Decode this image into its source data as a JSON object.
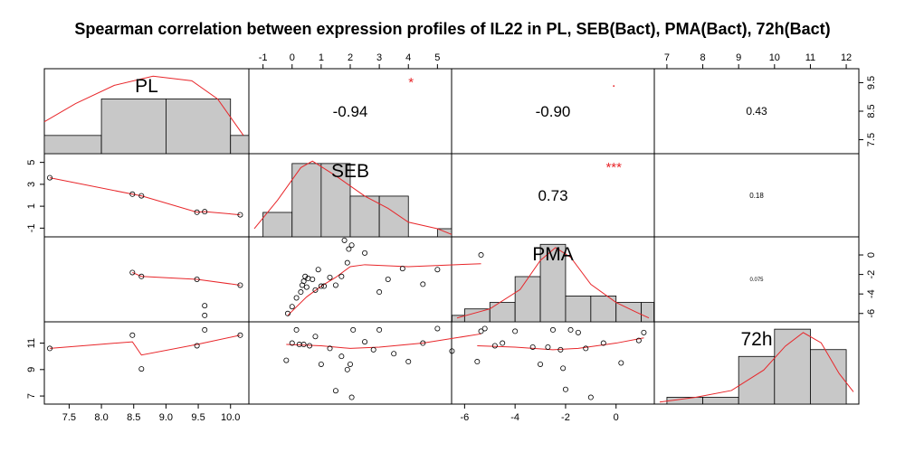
{
  "chart_data": {
    "type": "scatter",
    "title": "Spearman correlation between expression profiles of IL22 in PL, SEB(Bact), PMA(Bact), 72h(Bact)",
    "variables": [
      "PL",
      "SEB",
      "PMA",
      "72h"
    ],
    "colors": {
      "smooth": "#e8262a",
      "hist_fill": "#c8c8c8",
      "axis": "#000000",
      "significance": "#e8262a"
    },
    "axes": {
      "PL": {
        "range": [
          7.2,
          10.2
        ],
        "ticks": [
          "7.5",
          "8.0",
          "8.5",
          "9.0",
          "9.5",
          "10.0"
        ],
        "position": "bottom"
      },
      "SEB": {
        "range": [
          -1.3,
          5.3
        ],
        "ticks": [
          "-1",
          "0",
          "1",
          "2",
          "3",
          "4",
          "5"
        ],
        "left_ticks": [
          "-1",
          "1",
          "3",
          "5"
        ],
        "position": "top and left"
      },
      "PMA": {
        "range": [
          -6.3,
          1.3
        ],
        "ticks": [
          "-6",
          "-4",
          "-2",
          "0"
        ],
        "position": "bottom and right"
      },
      "72h": {
        "range": [
          6.8,
          12.2
        ],
        "ticks": [
          "7",
          "8",
          "9",
          "10",
          "11",
          "12"
        ],
        "left_ticks": [
          "7",
          "9",
          "11"
        ],
        "right_ticks": [
          "7.5",
          "8.5",
          "9.5"
        ],
        "position": "top and left"
      }
    },
    "histograms": {
      "PL": {
        "edges": [
          7.0,
          8.0,
          9.0,
          10.0,
          11.0
        ],
        "counts": [
          0.4,
          1.2,
          1.2,
          0.4
        ]
      },
      "SEB": {
        "edges": [
          -1,
          0,
          1,
          2,
          3,
          4,
          5,
          6
        ],
        "counts": [
          3,
          9,
          9,
          5,
          5,
          0,
          1
        ]
      },
      "PMA": {
        "edges": [
          -6.5,
          -6,
          -5,
          -4,
          -3,
          -2,
          -1,
          0,
          1,
          1.5
        ],
        "counts": [
          1,
          2,
          3,
          7,
          12,
          4,
          4,
          3,
          3
        ]
      },
      "72h": {
        "edges": [
          7,
          8,
          9,
          10,
          11,
          12
        ],
        "counts": [
          1,
          1,
          7,
          11,
          8,
          1
        ]
      }
    },
    "correlations": [
      {
        "pair": [
          "PL",
          "SEB"
        ],
        "value": "-0.94",
        "significance": "*"
      },
      {
        "pair": [
          "PL",
          "PMA"
        ],
        "value": "-0.90",
        "significance": "."
      },
      {
        "pair": [
          "PL",
          "72h"
        ],
        "value": "0.43",
        "significance": ""
      },
      {
        "pair": [
          "SEB",
          "PMA"
        ],
        "value": "0.73",
        "significance": "***"
      },
      {
        "pair": [
          "SEB",
          "72h"
        ],
        "value": "0.18",
        "significance": ""
      },
      {
        "pair": [
          "PMA",
          "72h"
        ],
        "value": "0.075",
        "significance": ""
      }
    ],
    "scatter": {
      "PL_SEB": [
        [
          7.2,
          3.6
        ],
        [
          8.48,
          2.1
        ],
        [
          8.62,
          1.95
        ],
        [
          9.48,
          0.45
        ],
        [
          9.6,
          0.5
        ],
        [
          10.15,
          0.22
        ]
      ],
      "PL_PMA": [
        [
          8.48,
          -1.8
        ],
        [
          8.62,
          -2.2
        ],
        [
          9.48,
          -2.5
        ],
        [
          9.6,
          -5.2
        ],
        [
          9.6,
          -6.2
        ],
        [
          10.15,
          -3.1
        ]
      ],
      "PL_72h": [
        [
          7.2,
          10.6
        ],
        [
          8.48,
          11.6
        ],
        [
          8.62,
          9.05
        ],
        [
          9.48,
          10.8
        ],
        [
          9.6,
          12.0
        ],
        [
          10.15,
          11.6
        ]
      ],
      "SEB_PMA": [
        [
          -0.15,
          -6.0
        ],
        [
          0.0,
          -5.3
        ],
        [
          0.15,
          -4.4
        ],
        [
          0.3,
          -3.8
        ],
        [
          0.35,
          -3.1
        ],
        [
          0.4,
          -2.7
        ],
        [
          0.45,
          -2.2
        ],
        [
          0.5,
          -3.3
        ],
        [
          0.55,
          -2.4
        ],
        [
          0.7,
          -2.5
        ],
        [
          0.8,
          -3.6
        ],
        [
          0.9,
          -1.5
        ],
        [
          1.0,
          -3.2
        ],
        [
          1.1,
          -3.2
        ],
        [
          1.3,
          -2.3
        ],
        [
          1.5,
          -3.1
        ],
        [
          1.7,
          -2.2
        ],
        [
          1.8,
          1.5
        ],
        [
          1.9,
          -0.8
        ],
        [
          1.95,
          0.6
        ],
        [
          2.05,
          1.0
        ],
        [
          2.5,
          0.2
        ],
        [
          3.0,
          -3.8
        ],
        [
          3.3,
          -2.5
        ],
        [
          3.8,
          -1.4
        ],
        [
          4.5,
          -3.0
        ],
        [
          5.0,
          -1.5
        ],
        [
          6.5,
          0.0
        ]
      ],
      "SEB_72h": [
        [
          -0.2,
          9.7
        ],
        [
          0.0,
          11.0
        ],
        [
          0.15,
          12.0
        ],
        [
          0.25,
          10.9
        ],
        [
          0.4,
          10.9
        ],
        [
          0.6,
          10.8
        ],
        [
          0.8,
          11.5
        ],
        [
          1.0,
          9.4
        ],
        [
          1.3,
          10.6
        ],
        [
          1.5,
          7.4
        ],
        [
          1.7,
          10.0
        ],
        [
          1.9,
          9.0
        ],
        [
          2.0,
          9.4
        ],
        [
          2.05,
          6.9
        ],
        [
          2.1,
          12.0
        ],
        [
          2.5,
          11.1
        ],
        [
          2.8,
          10.5
        ],
        [
          3.0,
          12.0
        ],
        [
          3.5,
          10.2
        ],
        [
          4.0,
          9.6
        ],
        [
          4.5,
          11.0
        ],
        [
          5.0,
          12.1
        ],
        [
          5.5,
          10.4
        ],
        [
          6.5,
          11.9
        ]
      ],
      "PMA_72h": [
        [
          -5.5,
          9.6
        ],
        [
          -5.2,
          12.1
        ],
        [
          -4.8,
          10.8
        ],
        [
          -4.5,
          11.0
        ],
        [
          -4.0,
          11.9
        ],
        [
          -3.3,
          10.7
        ],
        [
          -3.0,
          9.4
        ],
        [
          -2.7,
          10.7
        ],
        [
          -2.5,
          12.0
        ],
        [
          -2.2,
          10.5
        ],
        [
          -2.1,
          9.1
        ],
        [
          -2.0,
          7.5
        ],
        [
          -1.8,
          12.0
        ],
        [
          -1.5,
          11.8
        ],
        [
          -1.2,
          10.6
        ],
        [
          -1.0,
          6.9
        ],
        [
          -0.5,
          11.0
        ],
        [
          0.2,
          9.5
        ],
        [
          0.9,
          11.2
        ],
        [
          1.1,
          11.8
        ]
      ]
    },
    "smooths": {
      "PL_SEB": [
        [
          7.2,
          3.6
        ],
        [
          8.48,
          2.1
        ],
        [
          8.62,
          1.95
        ],
        [
          9.48,
          0.45
        ],
        [
          9.6,
          0.5
        ],
        [
          10.15,
          0.22
        ]
      ],
      "PL_PMA": [
        [
          8.48,
          -1.8
        ],
        [
          8.62,
          -2.2
        ],
        [
          9.48,
          -2.5
        ],
        [
          10.15,
          -3.1
        ]
      ],
      "PL_72h": [
        [
          7.2,
          10.6
        ],
        [
          8.48,
          11.1
        ],
        [
          8.62,
          10.1
        ],
        [
          9.48,
          10.9
        ],
        [
          10.15,
          11.6
        ]
      ],
      "SEB_PMA": [
        [
          -0.15,
          -6.2
        ],
        [
          0.5,
          -4.3
        ],
        [
          1.0,
          -3.2
        ],
        [
          1.5,
          -2.3
        ],
        [
          2.0,
          -1.2
        ],
        [
          2.5,
          -1.0
        ],
        [
          4.0,
          -1.2
        ],
        [
          6.5,
          -0.9
        ]
      ],
      "SEB_72h": [
        [
          -0.2,
          10.9
        ],
        [
          1.0,
          10.8
        ],
        [
          2.0,
          10.6
        ],
        [
          3.0,
          10.7
        ],
        [
          4.5,
          11.0
        ],
        [
          6.5,
          11.7
        ]
      ],
      "PMA_72h": [
        [
          -5.5,
          10.8
        ],
        [
          -4.0,
          10.7
        ],
        [
          -2.5,
          10.5
        ],
        [
          -1.5,
          10.6
        ],
        [
          0.0,
          11.0
        ],
        [
          1.1,
          11.4
        ]
      ]
    },
    "densities": {
      "PL": [
        [
          7.0,
          0.7
        ],
        [
          7.6,
          1.1
        ],
        [
          8.2,
          1.5
        ],
        [
          8.8,
          1.7
        ],
        [
          9.4,
          1.6
        ],
        [
          9.8,
          1.2
        ],
        [
          10.2,
          0.4
        ]
      ],
      "SEB": [
        [
          -1.3,
          1.0
        ],
        [
          -0.5,
          4.5
        ],
        [
          0.3,
          8.5
        ],
        [
          0.7,
          9.3
        ],
        [
          1.5,
          7.5
        ],
        [
          2.5,
          5.0
        ],
        [
          3.3,
          3.5
        ],
        [
          4.0,
          1.8
        ],
        [
          5.0,
          1.0
        ],
        [
          5.8,
          0.3
        ]
      ],
      "PMA": [
        [
          -6.3,
          0.6
        ],
        [
          -5.0,
          2.0
        ],
        [
          -3.8,
          5.0
        ],
        [
          -3.0,
          9.5
        ],
        [
          -2.4,
          11.5
        ],
        [
          -1.8,
          10.0
        ],
        [
          -1.0,
          5.8
        ],
        [
          0.0,
          3.0
        ],
        [
          0.8,
          1.5
        ],
        [
          1.3,
          0.6
        ]
      ],
      "72h": [
        [
          6.8,
          0.3
        ],
        [
          7.8,
          1.0
        ],
        [
          8.8,
          2.0
        ],
        [
          9.7,
          5.0
        ],
        [
          10.3,
          8.5
        ],
        [
          10.8,
          10.5
        ],
        [
          11.3,
          9.0
        ],
        [
          11.8,
          4.5
        ],
        [
          12.2,
          1.8
        ]
      ]
    }
  }
}
